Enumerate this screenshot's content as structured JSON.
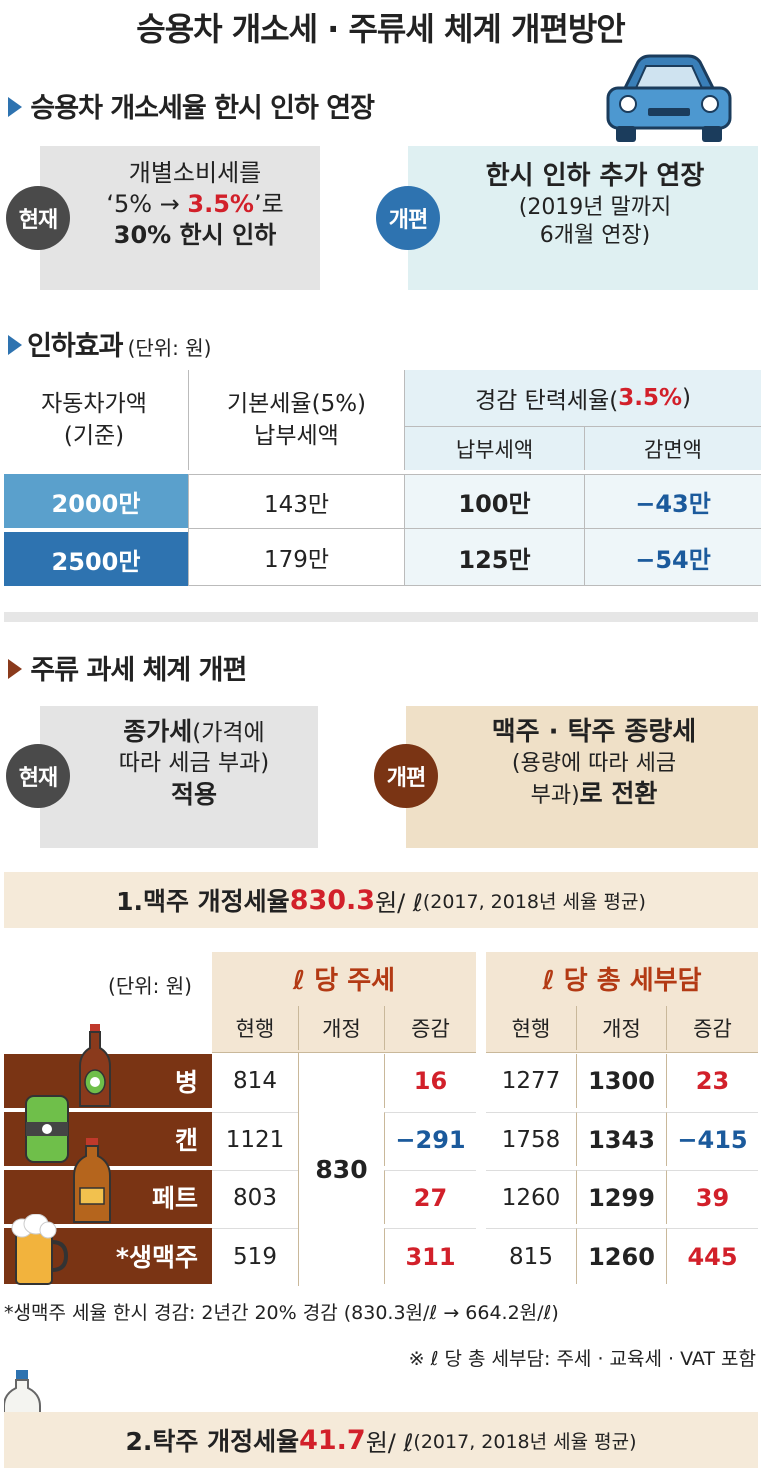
{
  "title": "승용차 개소세 · 주류세 체계 개편방안",
  "car": {
    "section_title": "승용차 개소세율 한시 인하 연장",
    "current_badge": "현재",
    "current_line1": "개별소비세를",
    "current_line2_a": "‘5% → ",
    "current_line2_b": "3.5%",
    "current_line2_c": "’로",
    "current_line3": "30% 한시 인하",
    "reform_badge": "개편",
    "reform_line1": "한시 인하 추가 연장",
    "reform_line2": "(2019년 말까지",
    "reform_line3": "6개월 연장)"
  },
  "effect": {
    "section_title": "인하효과",
    "unit": "(단위: 원)",
    "col1_line1": "자동차가액",
    "col1_line2": "(기준)",
    "col2_line1": "기본세율(5%)",
    "col2_line2": "납부세액",
    "col3_a": "경감 탄력세율(",
    "col3_b": "3.5%",
    "col3_c": ")",
    "col3_sub1": "납부세액",
    "col3_sub2": "감면액",
    "rows": [
      {
        "price": "2000만",
        "basic": "143만",
        "reduced": "100만",
        "saving": "−43만"
      },
      {
        "price": "2500만",
        "basic": "179만",
        "reduced": "125만",
        "saving": "−54만"
      }
    ]
  },
  "liquor": {
    "section_title": "주류 과세 체계 개편",
    "current_badge": "현재",
    "current_line1_a": "종가세",
    "current_line1_b": "(가격에",
    "current_line2": "따라 세금 부과)",
    "current_line3": "적용",
    "reform_badge": "개편",
    "reform_line1": "맥주 · 탁주 종량세",
    "reform_line2": "(용량에 따라 세금",
    "reform_line3_a": "부과)",
    "reform_line3_b": "로 전환"
  },
  "beer": {
    "heading_a": "1.맥주 개정세율 ",
    "heading_b": "830.3",
    "heading_c": "원/ ℓ",
    "heading_d": " (2017, 2018년 세율 평균)",
    "unit": "(단위: 원)",
    "group1": "ℓ 당 주세",
    "group2": "ℓ 당 총 세부담",
    "sub_headers": [
      "현행",
      "개정",
      "증감",
      "현행",
      "개정",
      "증감"
    ],
    "revised_tax": "830",
    "rows": [
      {
        "name": "병",
        "cur": "814",
        "diff": "16",
        "tcur": "1277",
        "trev": "1300",
        "tdiff": "23"
      },
      {
        "name": "캔",
        "cur": "1121",
        "diff": "−291",
        "tcur": "1758",
        "trev": "1343",
        "tdiff": "−415"
      },
      {
        "name": "페트",
        "cur": "803",
        "diff": "27",
        "tcur": "1260",
        "trev": "1299",
        "tdiff": "39"
      },
      {
        "name": "*생맥주",
        "cur": "519",
        "diff": "311",
        "tcur": "815",
        "trev": "1260",
        "tdiff": "445"
      }
    ],
    "note1": "*생맥주 세율 한시 경감: 2년간 20% 경감 (830.3원/ℓ → 664.2원/ℓ)",
    "note2": "※ ℓ 당 총 세부담: 주세 · 교육세 · VAT 포함"
  },
  "makgeolli": {
    "heading_a": "2.탁주 개정세율 ",
    "heading_b": "41.7",
    "heading_c": "원/ ℓ",
    "heading_d": " (2017, 2018년 세율 평균)"
  },
  "colors": {
    "blue_dark": "#2e73b0",
    "blue_light": "#5aa0cc",
    "brown": "#7a3414",
    "beige": "#f3e6d3",
    "red": "#d2202a"
  }
}
